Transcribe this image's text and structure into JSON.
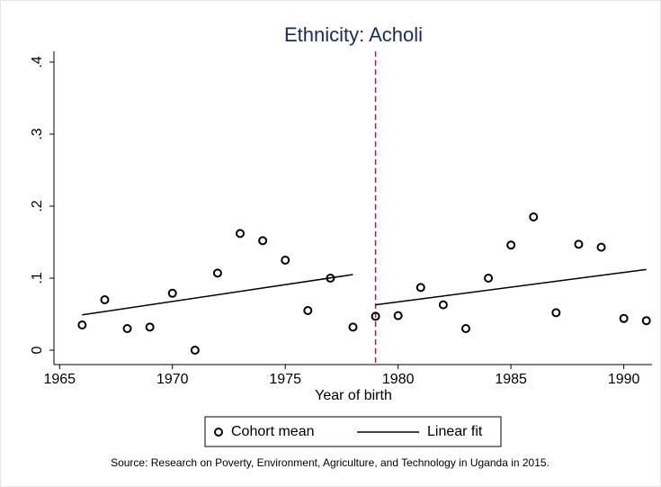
{
  "chart_data": {
    "type": "scatter",
    "title": "Ethnicity: Acholi",
    "x_label": "Year of birth",
    "source": "Source: Research on Poverty, Environment, Agriculture, and Technology in Uganda in 2015.",
    "xlim": [
      1964.75,
      1991.25
    ],
    "xticks": [
      1965,
      1970,
      1975,
      1980,
      1985,
      1990
    ],
    "ylim": [
      -0.02,
      0.415
    ],
    "yticks": [
      0,
      {
        "value": 0.1,
        "label": ".1"
      },
      {
        "value": 0.2,
        "label": ".2"
      },
      {
        "value": 0.3,
        "label": ".3"
      },
      {
        "value": 0.4,
        "label": ".4"
      }
    ],
    "cutoff": 1979,
    "cutoff_color": "#a3223f",
    "series": [
      {
        "name": "Cohort mean",
        "color": "#000000",
        "x": [
          1966,
          1967,
          1968,
          1969,
          1970,
          1971,
          1972,
          1973,
          1974,
          1975,
          1976,
          1977,
          1978,
          1979,
          1980,
          1981,
          1982,
          1983,
          1984,
          1985,
          1986,
          1987,
          1988,
          1989,
          1990,
          1991
        ],
        "values": [
          0.035,
          0.07,
          0.03,
          0.032,
          0.079,
          0,
          0.107,
          0.162,
          0.152,
          0.125,
          0.055,
          0.1,
          0.032,
          0.047,
          0.048,
          0.087,
          0.063,
          0.03,
          0.1,
          0.146,
          0.185,
          0.052,
          0.147,
          0.143,
          0.044,
          0.041
        ]
      },
      {
        "name": "Linear fit",
        "color": "#000000",
        "segments": [
          {
            "x": [
              1966,
              1978
            ],
            "values": [
              0.049,
              0.105
            ]
          },
          {
            "x": [
              1979,
              1991
            ],
            "values": [
              0.063,
              0.112
            ]
          }
        ]
      }
    ]
  }
}
